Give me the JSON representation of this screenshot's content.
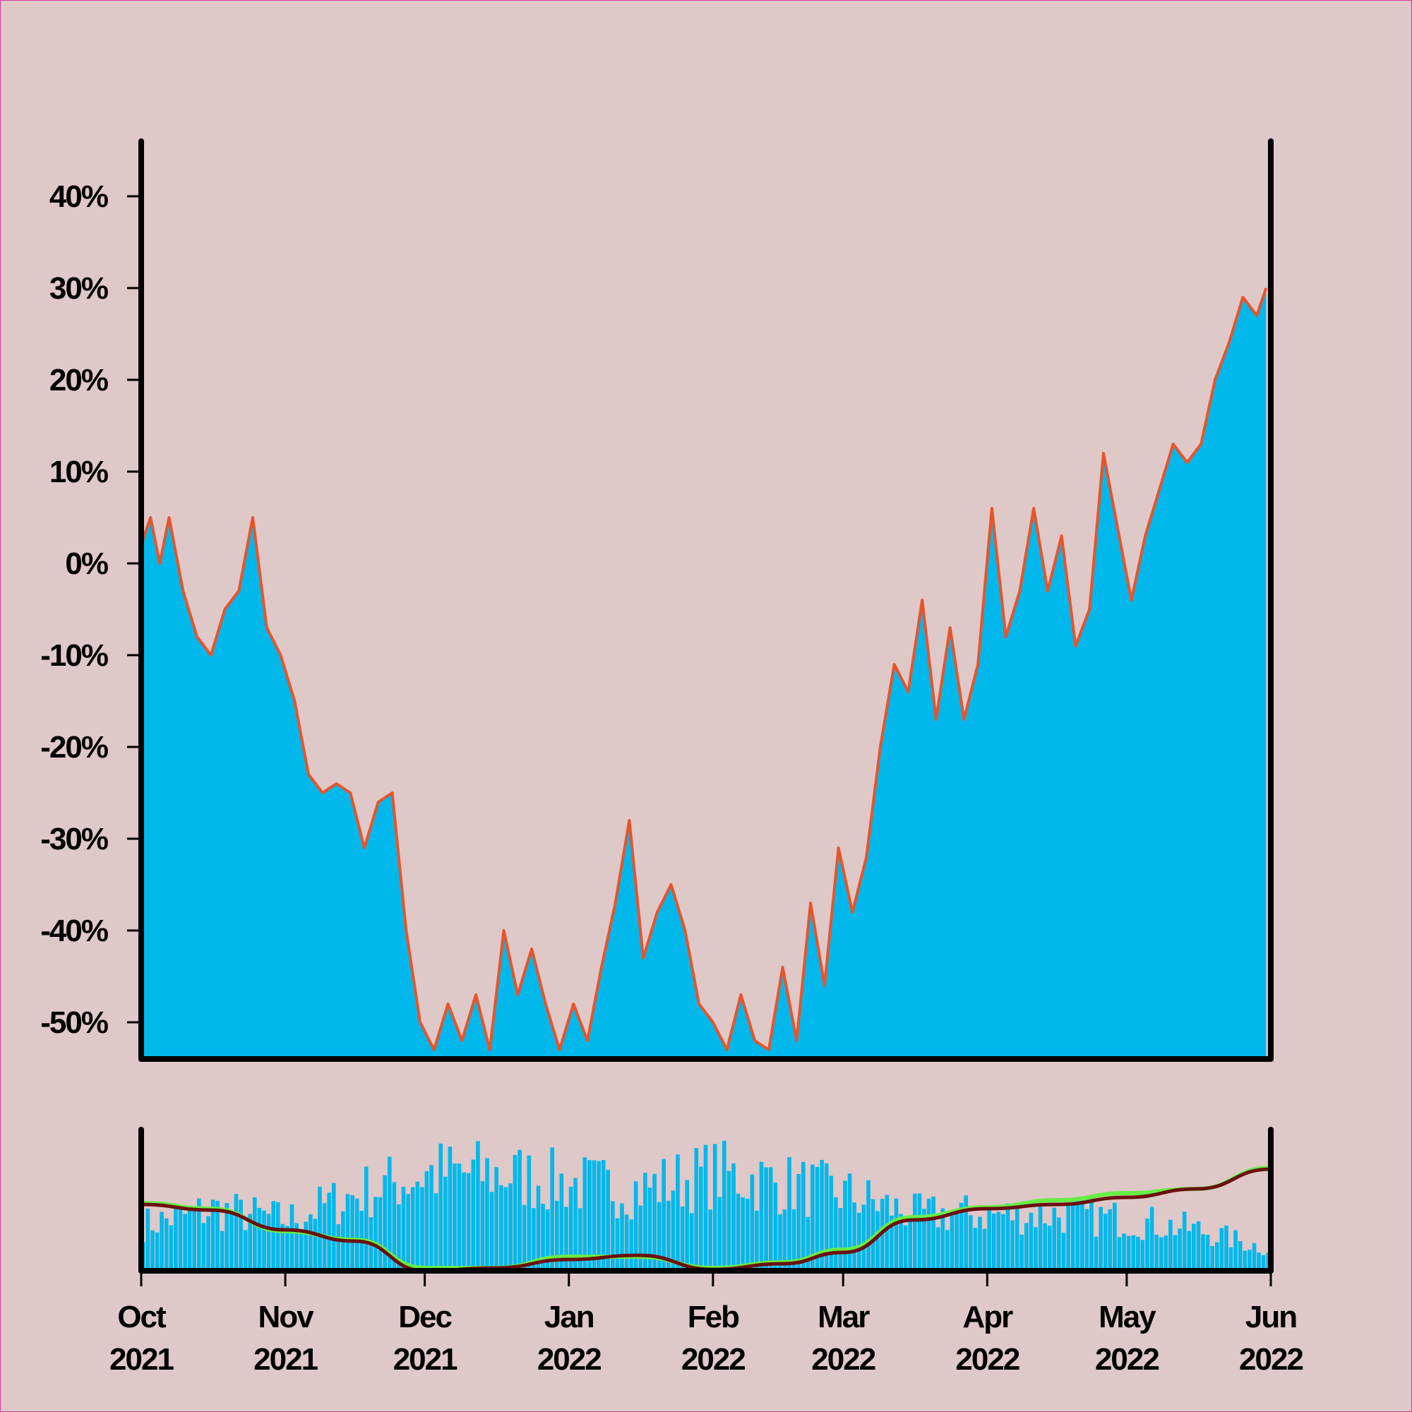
{
  "colors": {
    "background": "#dfc8c8",
    "border": "#d63c96",
    "price_fill": "#00b8ec",
    "price_line": "#e8542a",
    "volume_bars": "#00b8ec",
    "volume_ma_fast": "#66ee44",
    "volume_ma_slow": "#6b1010",
    "axes": "#000000"
  },
  "chart_data": [
    {
      "type": "area",
      "panel": "main",
      "x_start": "2021-10-01",
      "x_end": "2022-06-01",
      "ylim": [
        -54,
        46
      ],
      "y_ticks": [
        40,
        30,
        20,
        10,
        0,
        -10,
        -20,
        -30,
        -40,
        -50
      ],
      "y_tick_labels": [
        "40%",
        "30%",
        "20%",
        "10%",
        "0%",
        "-10%",
        "-20%",
        "-30%",
        "-40%",
        "-50%"
      ],
      "grid": false,
      "legend": "none",
      "series": [
        {
          "points": [
            [
              "2021-10-01",
              2
            ],
            [
              "2021-10-03",
              5
            ],
            [
              "2021-10-05",
              0
            ],
            [
              "2021-10-07",
              5
            ],
            [
              "2021-10-10",
              -3
            ],
            [
              "2021-10-13",
              -8
            ],
            [
              "2021-10-16",
              -10
            ],
            [
              "2021-10-19",
              -5
            ],
            [
              "2021-10-22",
              -3
            ],
            [
              "2021-10-25",
              5
            ],
            [
              "2021-10-28",
              -7
            ],
            [
              "2021-10-31",
              -10
            ],
            [
              "2021-11-03",
              -15
            ],
            [
              "2021-11-06",
              -23
            ],
            [
              "2021-11-09",
              -25
            ],
            [
              "2021-11-12",
              -24
            ],
            [
              "2021-11-15",
              -25
            ],
            [
              "2021-11-18",
              -31
            ],
            [
              "2021-11-21",
              -26
            ],
            [
              "2021-11-24",
              -25
            ],
            [
              "2021-11-27",
              -40
            ],
            [
              "2021-11-30",
              -50
            ],
            [
              "2021-12-03",
              -53
            ],
            [
              "2021-12-06",
              -48
            ],
            [
              "2021-12-09",
              -52
            ],
            [
              "2021-12-12",
              -47
            ],
            [
              "2021-12-15",
              -53
            ],
            [
              "2021-12-18",
              -40
            ],
            [
              "2021-12-21",
              -47
            ],
            [
              "2021-12-24",
              -42
            ],
            [
              "2021-12-27",
              -48
            ],
            [
              "2021-12-30",
              -53
            ],
            [
              "2022-01-02",
              -48
            ],
            [
              "2022-01-05",
              -52
            ],
            [
              "2022-01-08",
              -44
            ],
            [
              "2022-01-11",
              -37
            ],
            [
              "2022-01-14",
              -28
            ],
            [
              "2022-01-17",
              -43
            ],
            [
              "2022-01-20",
              -38
            ],
            [
              "2022-01-23",
              -35
            ],
            [
              "2022-01-26",
              -40
            ],
            [
              "2022-01-29",
              -48
            ],
            [
              "2022-02-01",
              -50
            ],
            [
              "2022-02-04",
              -53
            ],
            [
              "2022-02-07",
              -47
            ],
            [
              "2022-02-10",
              -52
            ],
            [
              "2022-02-13",
              -53
            ],
            [
              "2022-02-16",
              -44
            ],
            [
              "2022-02-19",
              -52
            ],
            [
              "2022-02-22",
              -37
            ],
            [
              "2022-02-25",
              -46
            ],
            [
              "2022-02-28",
              -31
            ],
            [
              "2022-03-03",
              -38
            ],
            [
              "2022-03-06",
              -32
            ],
            [
              "2022-03-09",
              -20
            ],
            [
              "2022-03-12",
              -11
            ],
            [
              "2022-03-15",
              -14
            ],
            [
              "2022-03-18",
              -4
            ],
            [
              "2022-03-21",
              -17
            ],
            [
              "2022-03-24",
              -7
            ],
            [
              "2022-03-27",
              -17
            ],
            [
              "2022-03-30",
              -11
            ],
            [
              "2022-04-02",
              6
            ],
            [
              "2022-04-05",
              -8
            ],
            [
              "2022-04-08",
              -3
            ],
            [
              "2022-04-11",
              6
            ],
            [
              "2022-04-14",
              -3
            ],
            [
              "2022-04-17",
              3
            ],
            [
              "2022-04-20",
              -9
            ],
            [
              "2022-04-23",
              -5
            ],
            [
              "2022-04-26",
              12
            ],
            [
              "2022-04-29",
              4
            ],
            [
              "2022-05-02",
              -4
            ],
            [
              "2022-05-05",
              3
            ],
            [
              "2022-05-08",
              8
            ],
            [
              "2022-05-11",
              13
            ],
            [
              "2022-05-14",
              11
            ],
            [
              "2022-05-17",
              13
            ],
            [
              "2022-05-20",
              20
            ],
            [
              "2022-05-23",
              24
            ],
            [
              "2022-05-26",
              29
            ],
            [
              "2022-05-29",
              27
            ],
            [
              "2022-05-31",
              30
            ]
          ]
        }
      ]
    },
    {
      "type": "bar",
      "panel": "volume",
      "x_start": "2021-10-01",
      "x_end": "2022-06-01",
      "grid": false,
      "legend": "none",
      "y_axis_labels": "none",
      "x_ticks": [
        "2021-10-01",
        "2021-11-01",
        "2021-12-01",
        "2022-01-01",
        "2022-02-01",
        "2022-03-01",
        "2022-04-01",
        "2022-05-01",
        "2022-06-01"
      ],
      "x_tick_labels": [
        [
          "Oct",
          "2021"
        ],
        [
          "Nov",
          "2021"
        ],
        [
          "Dec",
          "2021"
        ],
        [
          "Jan",
          "2022"
        ],
        [
          "Feb",
          "2022"
        ],
        [
          "Mar",
          "2022"
        ],
        [
          "Apr",
          "2022"
        ],
        [
          "May",
          "2022"
        ],
        [
          "Jun",
          "2022"
        ]
      ],
      "series": [
        {
          "kind": "bars",
          "envelope": [
            [
              "2021-10-01",
              0.45
            ],
            [
              "2021-10-16",
              0.6
            ],
            [
              "2021-11-01",
              0.5
            ],
            [
              "2021-11-16",
              0.75
            ],
            [
              "2021-12-01",
              0.95
            ],
            [
              "2021-12-16",
              0.95
            ],
            [
              "2022-01-01",
              0.85
            ],
            [
              "2022-01-16",
              0.8
            ],
            [
              "2022-02-01",
              0.95
            ],
            [
              "2022-02-16",
              0.85
            ],
            [
              "2022-03-01",
              0.75
            ],
            [
              "2022-03-16",
              0.55
            ],
            [
              "2022-04-01",
              0.55
            ],
            [
              "2022-04-16",
              0.55
            ],
            [
              "2022-05-01",
              0.5
            ],
            [
              "2022-05-16",
              0.4
            ],
            [
              "2022-06-01",
              0.2
            ]
          ]
        },
        {
          "kind": "fast_ma",
          "points": [
            [
              "2021-10-01",
              0.48
            ],
            [
              "2021-10-16",
              0.44
            ],
            [
              "2021-11-01",
              0.28
            ],
            [
              "2021-11-16",
              0.22
            ],
            [
              "2021-12-01",
              0.02
            ],
            [
              "2021-12-16",
              0.02
            ],
            [
              "2022-01-01",
              0.1
            ],
            [
              "2022-01-16",
              0.1
            ],
            [
              "2022-02-01",
              0.02
            ],
            [
              "2022-02-16",
              0.06
            ],
            [
              "2022-03-01",
              0.15
            ],
            [
              "2022-03-16",
              0.38
            ],
            [
              "2022-04-01",
              0.45
            ],
            [
              "2022-04-16",
              0.5
            ],
            [
              "2022-05-01",
              0.55
            ],
            [
              "2022-05-16",
              0.58
            ],
            [
              "2022-06-01",
              0.73
            ]
          ]
        },
        {
          "kind": "slow_ma",
          "points": [
            [
              "2021-10-01",
              0.47
            ],
            [
              "2021-10-16",
              0.43
            ],
            [
              "2021-11-01",
              0.29
            ],
            [
              "2021-11-16",
              0.21
            ],
            [
              "2021-12-01",
              0.0
            ],
            [
              "2021-12-16",
              0.02
            ],
            [
              "2022-01-01",
              0.08
            ],
            [
              "2022-01-16",
              0.11
            ],
            [
              "2022-02-01",
              0.01
            ],
            [
              "2022-02-16",
              0.05
            ],
            [
              "2022-03-01",
              0.13
            ],
            [
              "2022-03-16",
              0.36
            ],
            [
              "2022-04-01",
              0.44
            ],
            [
              "2022-04-16",
              0.47
            ],
            [
              "2022-05-01",
              0.52
            ],
            [
              "2022-05-16",
              0.58
            ],
            [
              "2022-06-01",
              0.72
            ]
          ]
        }
      ]
    }
  ]
}
